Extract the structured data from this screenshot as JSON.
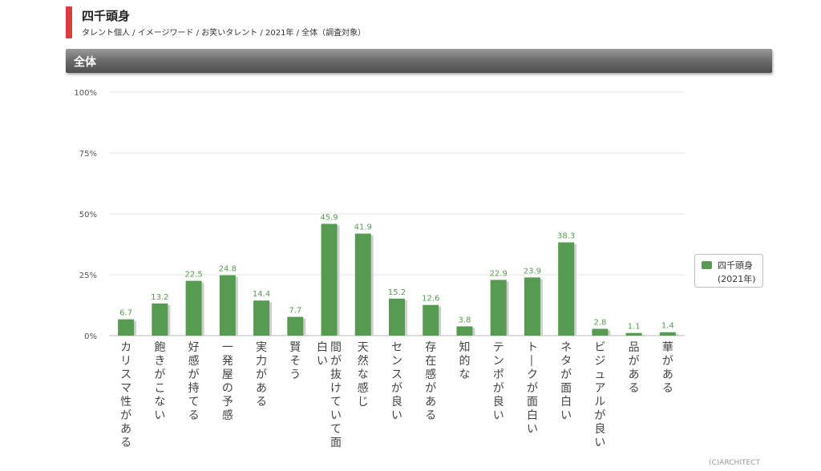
{
  "header": {
    "title": "四千頭身",
    "subtitle": "タレント個人 / イメージワード / お笑いタレント / 2021年 / 全体（調査対象）"
  },
  "section": {
    "title": "全体"
  },
  "colors": {
    "accent": "#d43f3f",
    "bar": "#579b52",
    "bar_shadow": "#cfcfcf",
    "value_label": "#579b52"
  },
  "legend": {
    "name": "四千頭身",
    "year": "(2021年)"
  },
  "copyright": "(C)ARCHITECT",
  "chart_data": {
    "type": "bar",
    "categories": [
      "カリスマ性がある",
      "飽きがこない",
      "好感が持てる",
      "一発屋の予感",
      "実力がある",
      "賢そう",
      "間が抜けていて面白い",
      "天然な感じ",
      "センスが良い",
      "存在感がある",
      "知的な",
      "テンポが良い",
      "トークが面白い",
      "ネタが面白い",
      "ビジュアルが良い",
      "品がある",
      "華がある"
    ],
    "category_lines": [
      [
        "カリスマ性がある"
      ],
      [
        "飽きがこない"
      ],
      [
        "好感が持てる"
      ],
      [
        "一発屋の予感"
      ],
      [
        "実力がある"
      ],
      [
        "賢そう"
      ],
      [
        "間が抜けていて面",
        "白い"
      ],
      [
        "天然な感じ"
      ],
      [
        "センスが良い"
      ],
      [
        "存在感がある"
      ],
      [
        "知的な"
      ],
      [
        "テンポが良い"
      ],
      [
        "トークが面白い"
      ],
      [
        "ネタが面白い"
      ],
      [
        "ビジュアルが良い"
      ],
      [
        "品がある"
      ],
      [
        "華がある"
      ]
    ],
    "series": [
      {
        "name": "四千頭身",
        "values": [
          6.7,
          13.2,
          22.5,
          24.8,
          14.4,
          7.7,
          45.9,
          41.9,
          15.2,
          12.6,
          3.8,
          22.9,
          23.9,
          38.3,
          2.8,
          1.1,
          1.4
        ]
      }
    ],
    "ylim": [
      0,
      100
    ],
    "yticks": [
      0,
      25,
      50,
      75,
      100
    ],
    "ytick_labels": [
      "0%",
      "25%",
      "50%",
      "75%",
      "100%"
    ],
    "grid": true,
    "legend_position": "right"
  }
}
